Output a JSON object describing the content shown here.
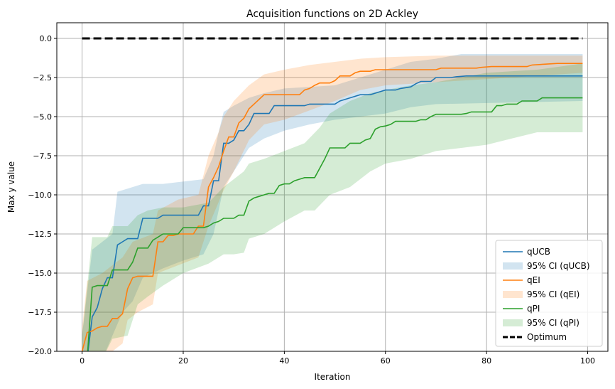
{
  "chart_data": {
    "type": "line",
    "title": "Acquisition functions on 2D Ackley",
    "xlabel": "Iteration",
    "ylabel": "Max y value",
    "xlim": [
      -5,
      104
    ],
    "ylim": [
      -20,
      1
    ],
    "xticks": [
      0,
      20,
      40,
      60,
      80,
      100
    ],
    "xtick_labels": [
      "0",
      "20",
      "40",
      "60",
      "80",
      "100"
    ],
    "yticks": [
      0,
      -2.5,
      -5,
      -7.5,
      -10,
      -12.5,
      -15,
      -17.5,
      -20
    ],
    "ytick_labels": [
      "0.0",
      "−2.5",
      "−5.0",
      "−7.5",
      "−10.0",
      "−12.5",
      "−15.0",
      "−17.5",
      "−20.0"
    ],
    "grid": true,
    "legend_position": "bottom-right",
    "series": [
      {
        "name": "qUCB",
        "color": "#1f77b4",
        "points": [
          [
            0,
            -21
          ],
          [
            1,
            -21
          ],
          [
            2,
            -17.8
          ],
          [
            3,
            -17.2
          ],
          [
            4,
            -16.0
          ],
          [
            5,
            -15.3
          ],
          [
            6,
            -15.3
          ],
          [
            7,
            -13.2
          ],
          [
            8,
            -13.0
          ],
          [
            9,
            -12.8
          ],
          [
            11,
            -12.8
          ],
          [
            12,
            -11.5
          ],
          [
            15,
            -11.5
          ],
          [
            16,
            -11.3
          ],
          [
            23,
            -11.3
          ],
          [
            24,
            -10.7
          ],
          [
            25,
            -10.7
          ],
          [
            26,
            -9.1
          ],
          [
            27,
            -9.1
          ],
          [
            28,
            -6.7
          ],
          [
            29,
            -6.7
          ],
          [
            30,
            -6.5
          ],
          [
            31,
            -5.9
          ],
          [
            32,
            -5.9
          ],
          [
            33,
            -5.5
          ],
          [
            34,
            -4.8
          ],
          [
            37,
            -4.8
          ],
          [
            38,
            -4.3
          ],
          [
            44,
            -4.3
          ],
          [
            45,
            -4.2
          ],
          [
            50,
            -4.2
          ],
          [
            51,
            -4.0
          ],
          [
            53,
            -3.8
          ],
          [
            55,
            -3.6
          ],
          [
            57,
            -3.6
          ],
          [
            58,
            -3.5
          ],
          [
            60,
            -3.3
          ],
          [
            62,
            -3.3
          ],
          [
            63,
            -3.2
          ],
          [
            65,
            -3.1
          ],
          [
            66,
            -2.9
          ],
          [
            67,
            -2.75
          ],
          [
            69,
            -2.75
          ],
          [
            70,
            -2.5
          ],
          [
            73,
            -2.5
          ],
          [
            74,
            -2.45
          ],
          [
            76,
            -2.4
          ],
          [
            99,
            -2.4
          ]
        ]
      },
      {
        "name": "95% CI (qUCB)",
        "color": "#1f77b4",
        "band_upper": [
          [
            0,
            -19
          ],
          [
            2,
            -13.5
          ],
          [
            4,
            -13
          ],
          [
            6,
            -12.5
          ],
          [
            7,
            -9.8
          ],
          [
            9,
            -9.6
          ],
          [
            12,
            -9.3
          ],
          [
            16,
            -9.3
          ],
          [
            24,
            -9.0
          ],
          [
            26,
            -7.5
          ],
          [
            27,
            -6.0
          ],
          [
            28,
            -4.7
          ],
          [
            30,
            -4.3
          ],
          [
            33,
            -3.8
          ],
          [
            36,
            -3.5
          ],
          [
            40,
            -3.2
          ],
          [
            50,
            -3.0
          ],
          [
            55,
            -2.5
          ],
          [
            60,
            -2.0
          ],
          [
            65,
            -1.5
          ],
          [
            70,
            -1.3
          ],
          [
            75,
            -1.0
          ],
          [
            99,
            -1.0
          ]
        ],
        "band_lower": [
          [
            0,
            -21
          ],
          [
            4,
            -21
          ],
          [
            6,
            -19.0
          ],
          [
            8,
            -17.5
          ],
          [
            10,
            -16.8
          ],
          [
            12,
            -15.3
          ],
          [
            16,
            -14.7
          ],
          [
            20,
            -14.2
          ],
          [
            24,
            -13.8
          ],
          [
            26,
            -12.5
          ],
          [
            28,
            -9.5
          ],
          [
            30,
            -8.5
          ],
          [
            33,
            -7.0
          ],
          [
            36,
            -6.4
          ],
          [
            40,
            -5.9
          ],
          [
            45,
            -5.5
          ],
          [
            50,
            -5.2
          ],
          [
            55,
            -5.0
          ],
          [
            60,
            -4.8
          ],
          [
            65,
            -4.4
          ],
          [
            70,
            -4.2
          ],
          [
            99,
            -4.0
          ]
        ]
      },
      {
        "name": "qEI",
        "color": "#ff7f0e",
        "points": [
          [
            0,
            -20
          ],
          [
            1,
            -18.8
          ],
          [
            2,
            -18.7
          ],
          [
            3,
            -18.5
          ],
          [
            4,
            -18.4
          ],
          [
            5,
            -18.4
          ],
          [
            6,
            -17.9
          ],
          [
            7,
            -17.9
          ],
          [
            8,
            -17.6
          ],
          [
            9,
            -16.0
          ],
          [
            10,
            -15.3
          ],
          [
            11,
            -15.2
          ],
          [
            14,
            -15.2
          ],
          [
            15,
            -13.0
          ],
          [
            16,
            -13.0
          ],
          [
            17,
            -12.6
          ],
          [
            18,
            -12.6
          ],
          [
            19,
            -12.5
          ],
          [
            22,
            -12.5
          ],
          [
            23,
            -12.0
          ],
          [
            24,
            -12.0
          ],
          [
            25,
            -9.5
          ],
          [
            26,
            -8.9
          ],
          [
            27,
            -8.2
          ],
          [
            28,
            -7.2
          ],
          [
            29,
            -6.3
          ],
          [
            30,
            -6.3
          ],
          [
            31,
            -5.4
          ],
          [
            32,
            -5.1
          ],
          [
            33,
            -4.5
          ],
          [
            34,
            -4.2
          ],
          [
            35,
            -3.9
          ],
          [
            36,
            -3.6
          ],
          [
            43,
            -3.6
          ],
          [
            44,
            -3.3
          ],
          [
            45,
            -3.2
          ],
          [
            46,
            -3.0
          ],
          [
            47,
            -2.85
          ],
          [
            49,
            -2.85
          ],
          [
            50,
            -2.7
          ],
          [
            51,
            -2.4
          ],
          [
            53,
            -2.4
          ],
          [
            54,
            -2.2
          ],
          [
            55,
            -2.1
          ],
          [
            57,
            -2.1
          ],
          [
            58,
            -2.0
          ],
          [
            70,
            -2.0
          ],
          [
            71,
            -1.9
          ],
          [
            78,
            -1.9
          ],
          [
            79,
            -1.85
          ],
          [
            81,
            -1.8
          ],
          [
            88,
            -1.8
          ],
          [
            89,
            -1.7
          ],
          [
            94,
            -1.6
          ],
          [
            99,
            -1.6
          ]
        ]
      },
      {
        "name": "95% CI (qEI)",
        "color": "#ff7f0e",
        "band_upper": [
          [
            0,
            -18.5
          ],
          [
            1,
            -15.5
          ],
          [
            4,
            -15.0
          ],
          [
            8,
            -14.0
          ],
          [
            10,
            -13.0
          ],
          [
            14,
            -12.5
          ],
          [
            15,
            -11.0
          ],
          [
            19,
            -10.3
          ],
          [
            23,
            -10.0
          ],
          [
            25,
            -7.5
          ],
          [
            27,
            -6.0
          ],
          [
            28,
            -5.0
          ],
          [
            30,
            -4.0
          ],
          [
            33,
            -3.0
          ],
          [
            36,
            -2.3
          ],
          [
            40,
            -2.0
          ],
          [
            45,
            -1.7
          ],
          [
            50,
            -1.5
          ],
          [
            55,
            -1.3
          ],
          [
            60,
            -1.2
          ],
          [
            70,
            -1.1
          ],
          [
            80,
            -1.1
          ],
          [
            99,
            -1.1
          ]
        ],
        "band_lower": [
          [
            0,
            -21
          ],
          [
            4,
            -21
          ],
          [
            6,
            -20.0
          ],
          [
            8,
            -19.5
          ],
          [
            9,
            -18.0
          ],
          [
            11,
            -17.5
          ],
          [
            14,
            -17.0
          ],
          [
            15,
            -15.0
          ],
          [
            19,
            -14.5
          ],
          [
            23,
            -14.0
          ],
          [
            25,
            -12.0
          ],
          [
            28,
            -9.7
          ],
          [
            30,
            -8.5
          ],
          [
            33,
            -6.5
          ],
          [
            36,
            -5.5
          ],
          [
            40,
            -5.2
          ],
          [
            45,
            -4.6
          ],
          [
            50,
            -4.0
          ],
          [
            55,
            -3.3
          ],
          [
            60,
            -3.0
          ],
          [
            70,
            -2.8
          ],
          [
            80,
            -2.6
          ],
          [
            99,
            -2.2
          ]
        ]
      },
      {
        "name": "qPI",
        "color": "#2ca02c",
        "points": [
          [
            0,
            -21
          ],
          [
            1,
            -21
          ],
          [
            2,
            -15.9
          ],
          [
            3,
            -15.8
          ],
          [
            5,
            -15.8
          ],
          [
            6,
            -14.8
          ],
          [
            9,
            -14.8
          ],
          [
            10,
            -14.3
          ],
          [
            11,
            -13.4
          ],
          [
            13,
            -13.4
          ],
          [
            14,
            -12.9
          ],
          [
            15,
            -12.7
          ],
          [
            16,
            -12.5
          ],
          [
            19,
            -12.5
          ],
          [
            20,
            -12.1
          ],
          [
            24,
            -12.1
          ],
          [
            25,
            -12.0
          ],
          [
            26,
            -11.8
          ],
          [
            27,
            -11.7
          ],
          [
            28,
            -11.5
          ],
          [
            30,
            -11.5
          ],
          [
            31,
            -11.3
          ],
          [
            32,
            -11.3
          ],
          [
            33,
            -10.4
          ],
          [
            34,
            -10.2
          ],
          [
            35,
            -10.1
          ],
          [
            36,
            -10.0
          ],
          [
            37,
            -9.9
          ],
          [
            38,
            -9.9
          ],
          [
            39,
            -9.4
          ],
          [
            40,
            -9.3
          ],
          [
            41,
            -9.3
          ],
          [
            42,
            -9.1
          ],
          [
            43,
            -9.0
          ],
          [
            44,
            -8.9
          ],
          [
            46,
            -8.9
          ],
          [
            47,
            -8.3
          ],
          [
            48,
            -7.7
          ],
          [
            49,
            -7.0
          ],
          [
            52,
            -7.0
          ],
          [
            53,
            -6.7
          ],
          [
            55,
            -6.7
          ],
          [
            56,
            -6.5
          ],
          [
            57,
            -6.4
          ],
          [
            58,
            -5.8
          ],
          [
            59,
            -5.65
          ],
          [
            60,
            -5.6
          ],
          [
            61,
            -5.5
          ],
          [
            62,
            -5.3
          ],
          [
            66,
            -5.3
          ],
          [
            67,
            -5.2
          ],
          [
            68,
            -5.2
          ],
          [
            69,
            -5.0
          ],
          [
            70,
            -4.85
          ],
          [
            75,
            -4.85
          ],
          [
            76,
            -4.8
          ],
          [
            77,
            -4.7
          ],
          [
            81,
            -4.7
          ],
          [
            82,
            -4.3
          ],
          [
            83,
            -4.3
          ],
          [
            84,
            -4.2
          ],
          [
            86,
            -4.2
          ],
          [
            87,
            -4.0
          ],
          [
            90,
            -4.0
          ],
          [
            91,
            -3.8
          ],
          [
            99,
            -3.8
          ]
        ]
      },
      {
        "name": "95% CI (qPI)",
        "color": "#2ca02c",
        "band_upper": [
          [
            0,
            -19
          ],
          [
            2,
            -12.7
          ],
          [
            5,
            -12.7
          ],
          [
            6,
            -12.0
          ],
          [
            9,
            -12.0
          ],
          [
            11,
            -11.3
          ],
          [
            13,
            -11.0
          ],
          [
            16,
            -10.8
          ],
          [
            20,
            -10.8
          ],
          [
            25,
            -10.5
          ],
          [
            28,
            -9.5
          ],
          [
            32,
            -8.5
          ],
          [
            33,
            -8.0
          ],
          [
            36,
            -7.7
          ],
          [
            40,
            -7.2
          ],
          [
            44,
            -6.7
          ],
          [
            47,
            -5.7
          ],
          [
            49,
            -4.8
          ],
          [
            53,
            -4.0
          ],
          [
            57,
            -3.5
          ],
          [
            60,
            -3.3
          ],
          [
            65,
            -3.0
          ],
          [
            70,
            -2.8
          ],
          [
            80,
            -2.2
          ],
          [
            90,
            -2.0
          ],
          [
            99,
            -1.6
          ]
        ],
        "band_lower": [
          [
            0,
            -21
          ],
          [
            4,
            -21
          ],
          [
            6,
            -19.2
          ],
          [
            9,
            -19.0
          ],
          [
            11,
            -17.0
          ],
          [
            13,
            -16.5
          ],
          [
            16,
            -15.8
          ],
          [
            20,
            -15.0
          ],
          [
            25,
            -14.4
          ],
          [
            28,
            -13.8
          ],
          [
            30,
            -13.8
          ],
          [
            32,
            -13.7
          ],
          [
            33,
            -12.8
          ],
          [
            36,
            -12.5
          ],
          [
            40,
            -11.7
          ],
          [
            44,
            -11.0
          ],
          [
            46,
            -11.0
          ],
          [
            49,
            -10.0
          ],
          [
            53,
            -9.5
          ],
          [
            57,
            -8.5
          ],
          [
            60,
            -8.0
          ],
          [
            65,
            -7.7
          ],
          [
            70,
            -7.2
          ],
          [
            75,
            -7.0
          ],
          [
            80,
            -6.8
          ],
          [
            85,
            -6.4
          ],
          [
            90,
            -6.0
          ],
          [
            99,
            -6.0
          ]
        ]
      },
      {
        "name": "Optimum",
        "color": "#000000",
        "points": [
          [
            0,
            0
          ],
          [
            99,
            0
          ]
        ]
      }
    ]
  }
}
